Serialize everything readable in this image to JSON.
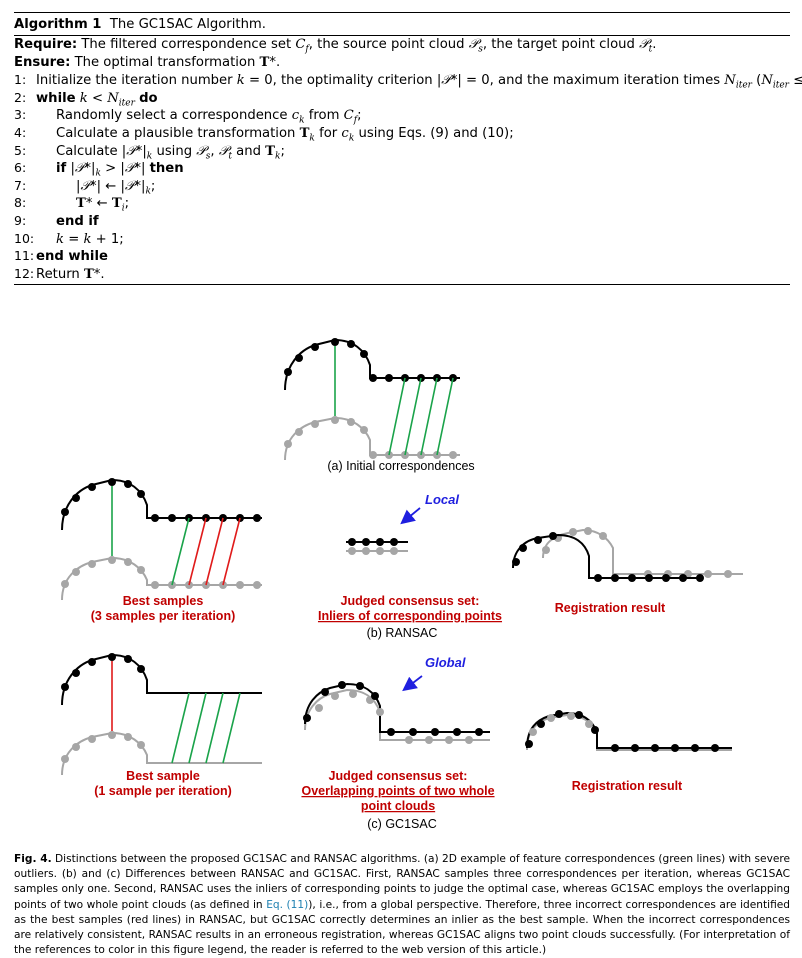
{
  "algorithm": {
    "title_label": "Algorithm 1",
    "title_text": "The GC1SAC Algorithm.",
    "require_kw": "Require:",
    "require_text_a": "The filtered correspondence set ",
    "require_text_b": ", the source point cloud ",
    "require_text_c": ", the target point cloud ",
    "require_text_d": ".",
    "ensure_kw": "Ensure:",
    "ensure_text": "The optimal transformation ",
    "lines": [
      {
        "num": "1:",
        "text": "Initialize the iteration number k = 0, the optimality criterion |𝒫*| = 0, and the maximum iteration times N_iter (N_iter ≤ n_f);"
      },
      {
        "num": "2:",
        "text": "while k < N_iter do"
      },
      {
        "num": "3:",
        "text": "Randomly select a correspondence c_k from C_f;"
      },
      {
        "num": "4:",
        "text": "Calculate a plausible transformation T_k for c_k using Eqs. (9) and (10);"
      },
      {
        "num": "5:",
        "text": "Calculate |𝒫*|_k using 𝒫_s, 𝒫_t and T_k;"
      },
      {
        "num": "6:",
        "text": "if |𝒫*|_k > |𝒫*| then"
      },
      {
        "num": "7:",
        "text": "|𝒫*| ← |𝒫*|_k;"
      },
      {
        "num": "8:",
        "text": "T* ← T_i;"
      },
      {
        "num": "9:",
        "text": "end if"
      },
      {
        "num": "10:",
        "text": "k = k + 1;"
      },
      {
        "num": "11:",
        "text": "end while"
      },
      {
        "num": "12:",
        "text": "Return T*."
      }
    ]
  },
  "figure": {
    "panel_a_caption": "(a) Initial correspondences",
    "panel_b_caption": "(b) RANSAC",
    "panel_c_caption": "(c) GC1SAC",
    "ransac_best_line1": "Best samples",
    "ransac_best_line2": "(3 samples per iteration)",
    "ransac_judged_line1": "Judged consensus set:",
    "ransac_judged_line2": "Inliers of corresponding points",
    "ransac_result": "Registration result",
    "local_label": "Local",
    "gc1sac_best_line1": "Best sample",
    "gc1sac_best_line2": "(1 sample per iteration)",
    "gc1sac_judged_line1": "Judged consensus set:",
    "gc1sac_judged_line2": "Overlapping points of two whole",
    "gc1sac_judged_line3": "point clouds",
    "gc1sac_result": "Registration result",
    "global_label": "Global",
    "colors": {
      "target": "#000000",
      "source": "#a6a6a6",
      "inlier": "#1aa34a",
      "outlier": "#e01b1b",
      "accent_red": "#c00000",
      "accent_blue": "#1f1fdf"
    }
  },
  "caption": {
    "label": "Fig. 4.",
    "text_a": "Distinctions between the proposed GC1SAC and RANSAC algorithms. (a) 2D example of feature correspondences (green lines) with severe outliers. (b) and (c) Differences between RANSAC and GC1SAC. First, RANSAC samples three correspondences per iteration, whereas GC1SAC samples only one. Second, RANSAC uses the inliers of corresponding points to judge the optimal case, whereas GC1SAC employs the overlapping points of two whole point clouds (as defined in ",
    "link": "Eq. (11)",
    "text_b": "), i.e., from a global perspective. Therefore, three incorrect correspondences are identified as the best samples (red lines) in RANSAC, but GC1SAC correctly determines an inlier as the best sample. When the incorrect correspondences are relatively consistent, RANSAC results in an erroneous registration, whereas GC1SAC aligns two point clouds successfully. (For interpretation of the references to color in this figure legend, the reader is referred to the web version of this article.)"
  }
}
